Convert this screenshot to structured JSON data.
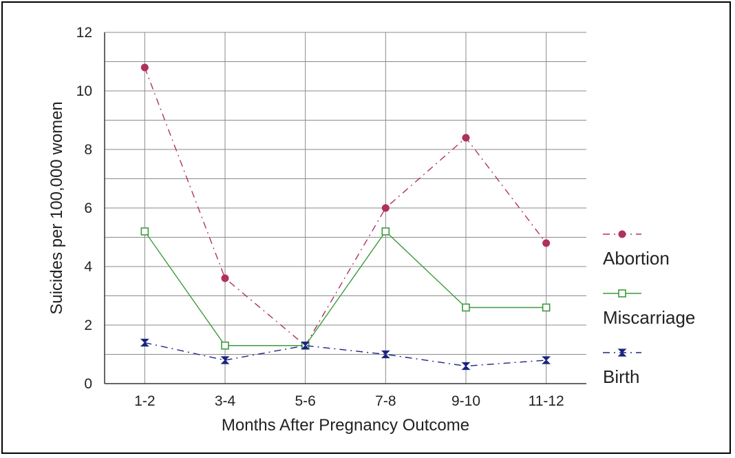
{
  "chart_data": {
    "type": "line",
    "title": "",
    "xlabel": "Months After Pregnancy Outcome",
    "ylabel": "Suicides per 100,000 women",
    "categories": [
      "1-2",
      "3-4",
      "5-6",
      "7-8",
      "9-10",
      "11-12"
    ],
    "ylim": [
      0,
      12
    ],
    "yticks": [
      "0",
      "2",
      "4",
      "6",
      "8",
      "10",
      "12"
    ],
    "grid": true,
    "legend_position": "right",
    "series": [
      {
        "name": "Abortion",
        "values": [
          10.8,
          3.6,
          1.3,
          6.0,
          8.4,
          4.8
        ],
        "color": "#b03060",
        "marker": "filled-circle",
        "line_style": "dash-dot"
      },
      {
        "name": "Miscarriage",
        "values": [
          5.2,
          1.3,
          1.3,
          5.2,
          2.6,
          2.6
        ],
        "color": "#3c9a3c",
        "marker": "open-square",
        "line_style": "solid"
      },
      {
        "name": "Birth",
        "values": [
          1.4,
          0.8,
          1.3,
          1.0,
          0.6,
          0.8
        ],
        "color": "#1a237e",
        "marker": "hourglass",
        "line_style": "dash-dot"
      }
    ]
  }
}
